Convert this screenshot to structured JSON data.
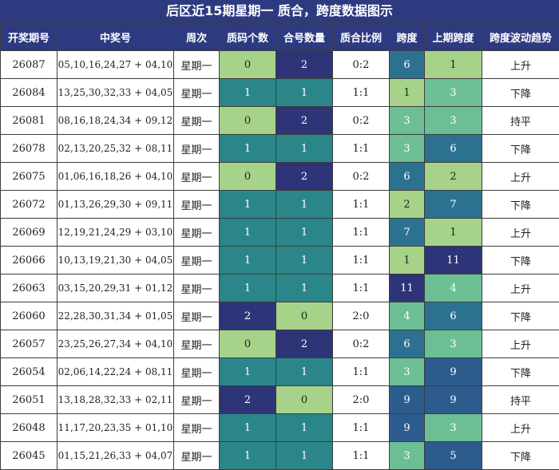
{
  "title": "后区近15期星期一 质合，跨度数据图示",
  "colors": {
    "header_bg": "#2e3a80",
    "c_light_green": "#a6d28a",
    "c_teal": "#2a8688",
    "c_navy": "#2e3478",
    "c_mid_green": "#6cbf94",
    "c_blue": "#2c5b8e",
    "c_steel": "#2d7190"
  },
  "headers": [
    "开奖期号",
    "中奖号",
    "周次",
    "质码个数",
    "合号数量",
    "质合比例",
    "跨度",
    "上期跨度",
    "跨度波动趋势"
  ],
  "chart_data": {
    "type": "table",
    "title": "后区近15期星期一 质合，跨度数据图示",
    "columns": [
      "开奖期号",
      "中奖号",
      "周次",
      "质码个数",
      "合号数量",
      "质合比例",
      "跨度",
      "上期跨度",
      "跨度波动趋势"
    ],
    "rows": [
      {
        "issue": "26087",
        "numbers": "05,10,16,24,27 + 04,10",
        "weekday": "星期一",
        "prime": "0",
        "composite": "2",
        "ratio": "0:2",
        "span": "6",
        "prev_span": "1",
        "trend": "上升"
      },
      {
        "issue": "26084",
        "numbers": "13,25,30,32,33 + 04,05",
        "weekday": "星期一",
        "prime": "1",
        "composite": "1",
        "ratio": "1:1",
        "span": "1",
        "prev_span": "3",
        "trend": "下降"
      },
      {
        "issue": "26081",
        "numbers": "08,16,18,24,34 + 09,12",
        "weekday": "星期一",
        "prime": "0",
        "composite": "2",
        "ratio": "0:2",
        "span": "3",
        "prev_span": "3",
        "trend": "持平"
      },
      {
        "issue": "26078",
        "numbers": "02,13,20,25,32 + 08,11",
        "weekday": "星期一",
        "prime": "1",
        "composite": "1",
        "ratio": "1:1",
        "span": "3",
        "prev_span": "6",
        "trend": "下降"
      },
      {
        "issue": "26075",
        "numbers": "01,06,16,18,26 + 04,10",
        "weekday": "星期一",
        "prime": "0",
        "composite": "2",
        "ratio": "0:2",
        "span": "6",
        "prev_span": "2",
        "trend": "上升"
      },
      {
        "issue": "26072",
        "numbers": "01,13,26,29,30 + 09,11",
        "weekday": "星期一",
        "prime": "1",
        "composite": "1",
        "ratio": "1:1",
        "span": "2",
        "prev_span": "7",
        "trend": "下降"
      },
      {
        "issue": "26069",
        "numbers": "12,19,21,24,29 + 03,10",
        "weekday": "星期一",
        "prime": "1",
        "composite": "1",
        "ratio": "1:1",
        "span": "7",
        "prev_span": "1",
        "trend": "上升"
      },
      {
        "issue": "26066",
        "numbers": "10,13,19,21,30 + 04,05",
        "weekday": "星期一",
        "prime": "1",
        "composite": "1",
        "ratio": "1:1",
        "span": "1",
        "prev_span": "11",
        "trend": "下降"
      },
      {
        "issue": "26063",
        "numbers": "03,15,20,29,31 + 01,12",
        "weekday": "星期一",
        "prime": "1",
        "composite": "1",
        "ratio": "1:1",
        "span": "11",
        "prev_span": "4",
        "trend": "上升"
      },
      {
        "issue": "26060",
        "numbers": "22,28,30,31,34 + 01,05",
        "weekday": "星期一",
        "prime": "2",
        "composite": "0",
        "ratio": "2:0",
        "span": "4",
        "prev_span": "6",
        "trend": "下降"
      },
      {
        "issue": "26057",
        "numbers": "23,25,26,27,34 + 04,10",
        "weekday": "星期一",
        "prime": "0",
        "composite": "2",
        "ratio": "0:2",
        "span": "6",
        "prev_span": "3",
        "trend": "上升"
      },
      {
        "issue": "26054",
        "numbers": "02,06,14,22,24 + 08,11",
        "weekday": "星期一",
        "prime": "1",
        "composite": "1",
        "ratio": "1:1",
        "span": "3",
        "prev_span": "9",
        "trend": "下降"
      },
      {
        "issue": "26051",
        "numbers": "13,18,28,32,33 + 02,11",
        "weekday": "星期一",
        "prime": "2",
        "composite": "0",
        "ratio": "2:0",
        "span": "9",
        "prev_span": "9",
        "trend": "持平"
      },
      {
        "issue": "26048",
        "numbers": "11,17,20,23,35 + 01,10",
        "weekday": "星期一",
        "prime": "1",
        "composite": "1",
        "ratio": "1:1",
        "span": "9",
        "prev_span": "3",
        "trend": "上升"
      },
      {
        "issue": "26045",
        "numbers": "01,15,21,26,33 + 04,07",
        "weekday": "星期一",
        "prime": "1",
        "composite": "1",
        "ratio": "1:1",
        "span": "3",
        "prev_span": "5",
        "trend": "下降"
      }
    ]
  }
}
